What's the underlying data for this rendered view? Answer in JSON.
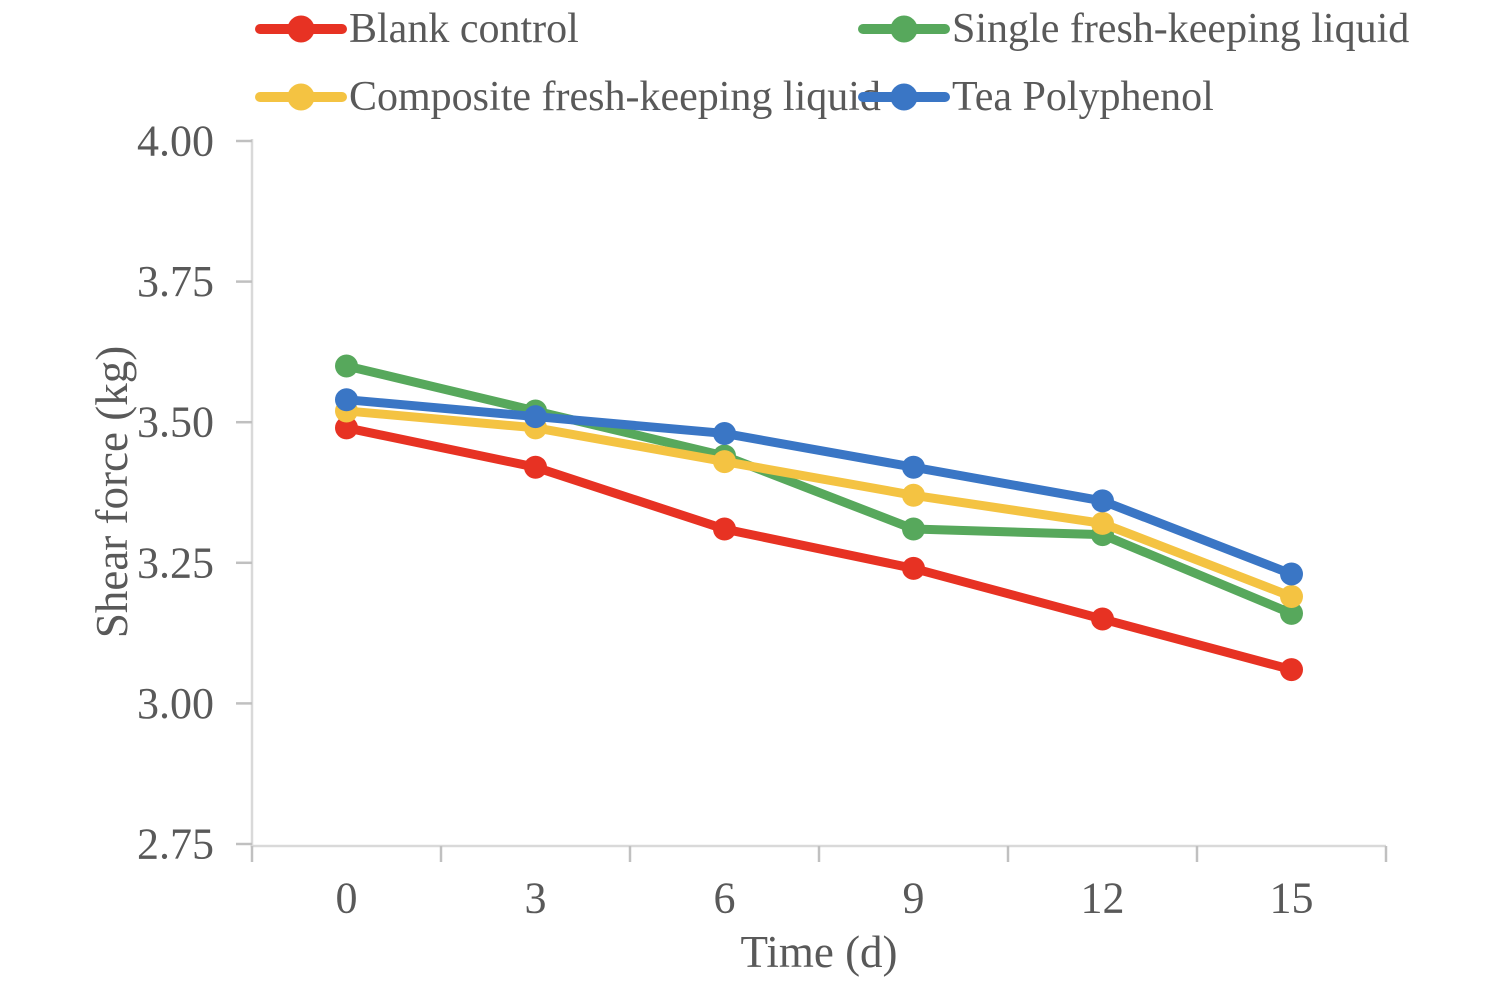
{
  "chart_data": {
    "type": "line",
    "title": "",
    "xlabel": "Time (d)",
    "ylabel": "Shear force (kg)",
    "categories": [
      0,
      3,
      6,
      9,
      12,
      15
    ],
    "x_tick_labels": [
      "0",
      "3",
      "6",
      "9",
      "12",
      "15"
    ],
    "y_ticks": [
      4.0,
      3.75,
      3.5,
      3.25,
      3.0,
      2.75
    ],
    "y_tick_labels": [
      "4.00",
      "3.75",
      "3.50",
      "3.25",
      "3.00",
      "2.75"
    ],
    "ylim": [
      2.75,
      4.0
    ],
    "grid": false,
    "legend_position": "top",
    "marker": "circle",
    "series": [
      {
        "name": "Blank control",
        "color": "#E73223",
        "values": [
          3.49,
          3.42,
          3.31,
          3.24,
          3.15,
          3.06
        ]
      },
      {
        "name": "Single fresh-keeping liquid",
        "color": "#57A85C",
        "values": [
          3.6,
          3.52,
          3.44,
          3.31,
          3.3,
          3.16
        ]
      },
      {
        "name": "Composite fresh-keeping liquid",
        "color": "#F4C342",
        "values": [
          3.52,
          3.49,
          3.43,
          3.37,
          3.32,
          3.19
        ]
      },
      {
        "name": "Tea Polyphenol",
        "color": "#3A76C5",
        "values": [
          3.54,
          3.51,
          3.48,
          3.42,
          3.36,
          3.23
        ]
      }
    ],
    "colors": {
      "text": "#595959",
      "axis_line": "#D9D9D9",
      "tick_mark": "#C0C0C0",
      "background": "#FFFFFF"
    }
  }
}
